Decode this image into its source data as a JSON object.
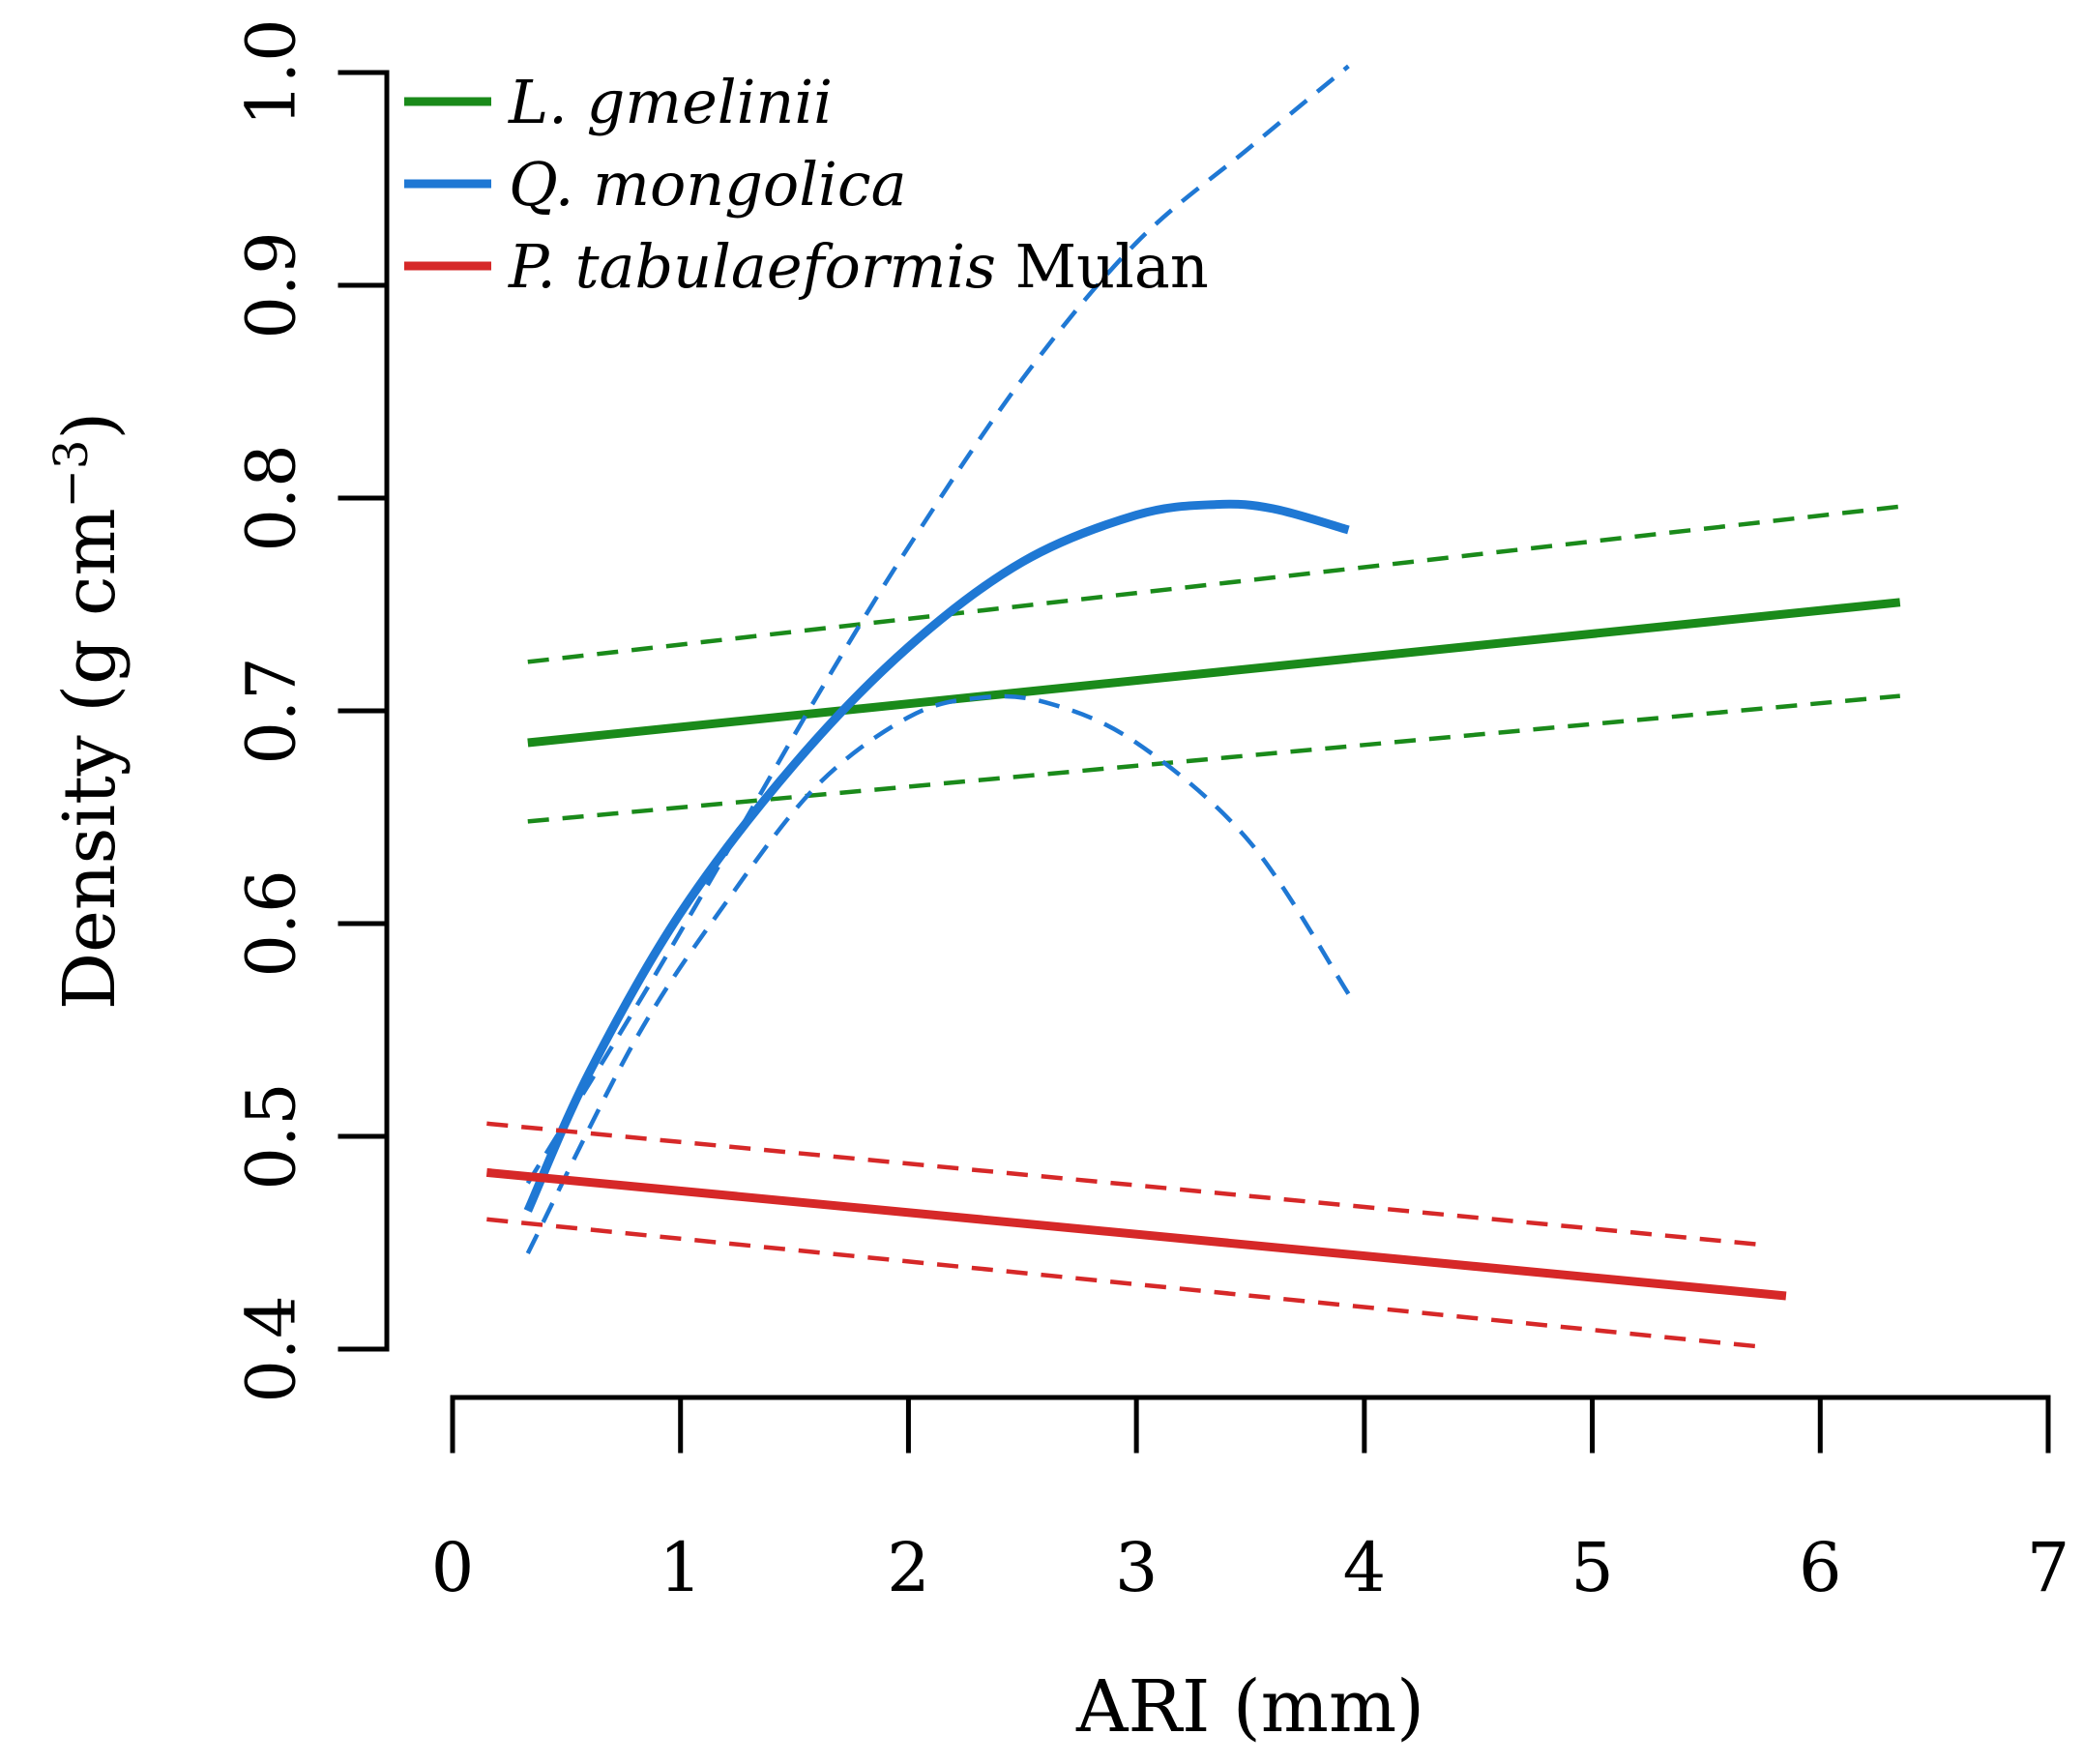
{
  "chart_data": {
    "type": "line",
    "title": "",
    "xlabel": "ARI (mm)",
    "ylabel_main": "Density (g cm",
    "ylabel_sup": "−3",
    "ylabel_close": ")",
    "xlim": [
      0,
      7
    ],
    "ylim": [
      0.4,
      1.0
    ],
    "x_ticks": [
      0,
      1,
      2,
      3,
      4,
      5,
      6,
      7
    ],
    "x_tick_labels": [
      "0",
      "1",
      "2",
      "3",
      "4",
      "5",
      "6",
      "7"
    ],
    "y_ticks": [
      0.4,
      0.5,
      0.6,
      0.7,
      0.8,
      0.9,
      1.0
    ],
    "y_tick_labels": [
      "0.4",
      "0.5",
      "0.6",
      "0.7",
      "0.8",
      "0.9",
      "1.0"
    ],
    "legend_position": "top-left",
    "series": [
      {
        "name": "L. gmelinii",
        "legend_italic": "L. gmelinii",
        "legend_suffix": "",
        "color": "#1a8a1a",
        "model": "linear",
        "x_range": [
          0.33,
          6.35
        ],
        "fit": [
          0.685,
          0.751
        ],
        "ci_upper": [
          0.723,
          0.796
        ],
        "ci_lower": [
          0.648,
          0.707
        ]
      },
      {
        "name": "Q. mongolica",
        "legend_italic": "Q. mongolica",
        "legend_suffix": "",
        "color": "#1f78d4",
        "model": "curve",
        "x_range": [
          0.33,
          3.93
        ],
        "fit_points": [
          [
            0.33,
            0.465
          ],
          [
            0.6,
            0.53
          ],
          [
            1.0,
            0.605
          ],
          [
            1.5,
            0.675
          ],
          [
            2.0,
            0.73
          ],
          [
            2.5,
            0.77
          ],
          [
            3.0,
            0.792
          ],
          [
            3.35,
            0.797
          ],
          [
            3.6,
            0.795
          ],
          [
            3.93,
            0.785
          ]
        ],
        "ci_upper_points": [
          [
            0.33,
            0.478
          ],
          [
            0.8,
            0.56
          ],
          [
            1.2,
            0.633
          ],
          [
            1.6,
            0.707
          ],
          [
            2.0,
            0.777
          ],
          [
            2.5,
            0.856
          ],
          [
            3.0,
            0.92
          ],
          [
            3.5,
            0.965
          ],
          [
            3.93,
            1.003
          ]
        ],
        "ci_lower_points": [
          [
            0.33,
            0.445
          ],
          [
            0.8,
            0.545
          ],
          [
            1.2,
            0.61
          ],
          [
            1.6,
            0.665
          ],
          [
            2.0,
            0.697
          ],
          [
            2.3,
            0.706
          ],
          [
            2.6,
            0.704
          ],
          [
            3.0,
            0.685
          ],
          [
            3.5,
            0.638
          ],
          [
            3.93,
            0.567
          ]
        ]
      },
      {
        "name": "P. tabulaeformis Mulan",
        "legend_italic": "P. tabulaeformis",
        "legend_suffix": " Mulan",
        "color": "#d62828",
        "model": "linear",
        "x_range": [
          0.15,
          5.85
        ],
        "fit": [
          0.483,
          0.425
        ],
        "ci_upper": [
          0.506,
          0.449
        ],
        "ci_lower": [
          0.461,
          0.401
        ],
        "ci_x_range": [
          0.15,
          5.75
        ]
      }
    ]
  }
}
